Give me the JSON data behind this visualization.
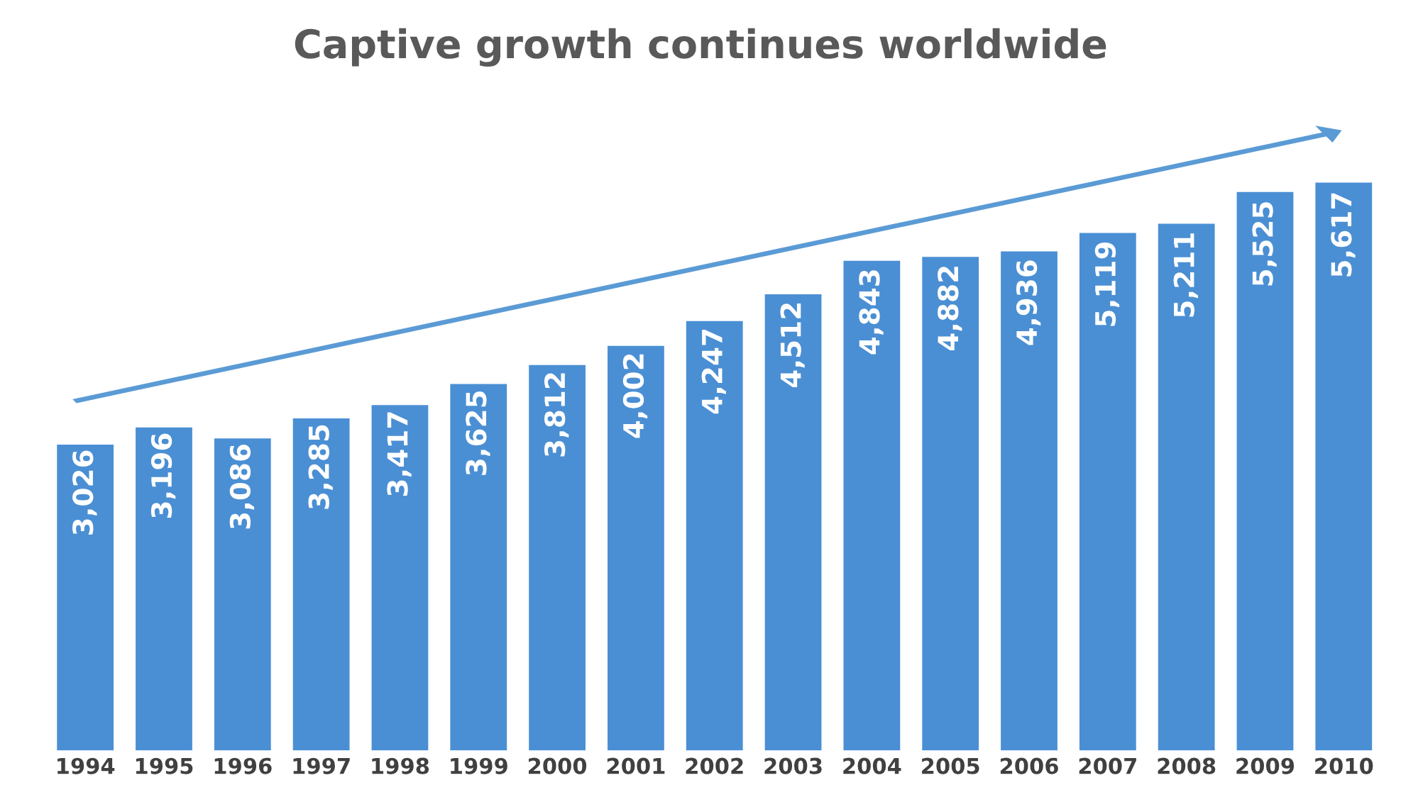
{
  "chart_data": {
    "type": "bar",
    "title": "Captive growth continues worldwide",
    "categories": [
      "1994",
      "1995",
      "1996",
      "1997",
      "1998",
      "1999",
      "2000",
      "2001",
      "2002",
      "2003",
      "2004",
      "2005",
      "2006",
      "2007",
      "2008",
      "2009",
      "2010"
    ],
    "values": [
      3026,
      3196,
      3086,
      3285,
      3417,
      3625,
      3812,
      4002,
      4247,
      4512,
      4843,
      4882,
      4936,
      5119,
      5211,
      5525,
      5617
    ],
    "value_labels": [
      "3,026",
      "3,196",
      "3,086",
      "3,285",
      "3,417",
      "3,625",
      "3,812",
      "4,002",
      "4,247",
      "4,512",
      "4,843",
      "4,882",
      "4,936",
      "5,119",
      "5,211",
      "5,525",
      "5,617"
    ],
    "color": "#4a8fd4",
    "grid": false,
    "legend": false
  }
}
